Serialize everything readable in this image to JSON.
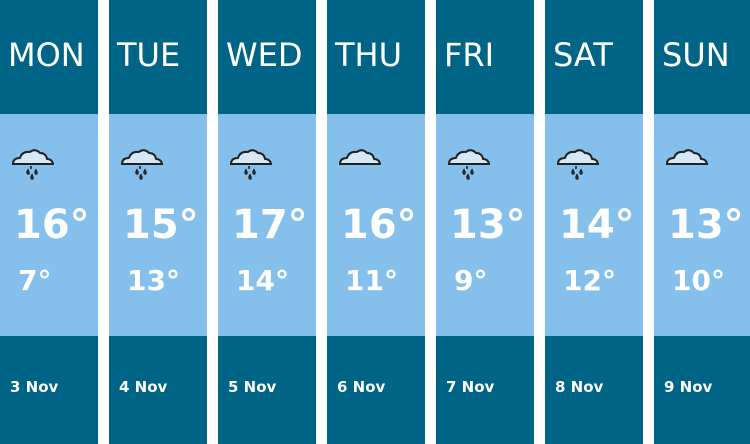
{
  "forecast": [
    {
      "day": "MON",
      "icon": "rain-cloud-icon",
      "high": "16°",
      "low": "7°",
      "date": "3 Nov"
    },
    {
      "day": "TUE",
      "icon": "rain-cloud-icon",
      "high": "15°",
      "low": "13°",
      "date": "4 Nov"
    },
    {
      "day": "WED",
      "icon": "rain-cloud-icon",
      "high": "17°",
      "low": "14°",
      "date": "5 Nov"
    },
    {
      "day": "THU",
      "icon": "cloud-icon",
      "high": "16°",
      "low": "11°",
      "date": "6 Nov"
    },
    {
      "day": "FRI",
      "icon": "rain-cloud-icon",
      "high": "13°",
      "low": "9°",
      "date": "7 Nov"
    },
    {
      "day": "SAT",
      "icon": "rain-cloud-icon",
      "high": "14°",
      "low": "12°",
      "date": "8 Nov"
    },
    {
      "day": "SUN",
      "icon": "cloud-icon",
      "high": "13°",
      "low": "10°",
      "date": "9 Nov"
    }
  ],
  "colors": {
    "header": "#006487",
    "body": "#85c0ec",
    "text": "#ffffff"
  }
}
